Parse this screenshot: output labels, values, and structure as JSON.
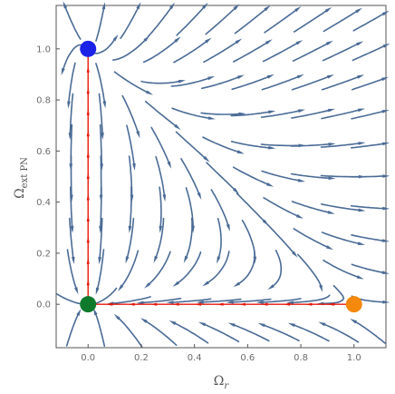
{
  "chart_data": {
    "type": "streamplot",
    "xlabel": "Ω",
    "xlabel_sub": "r",
    "ylabel": "Ω",
    "ylabel_sub": "ext PN",
    "xlim": [
      -0.12,
      1.12
    ],
    "ylim": [
      -0.17,
      1.17
    ],
    "x_ticks": [
      "0.0",
      "0.2",
      "0.4",
      "0.6",
      "0.8",
      "1.0"
    ],
    "x_tick_values": [
      0.0,
      0.2,
      0.4,
      0.6,
      0.8,
      1.0
    ],
    "y_ticks": [
      "0.0",
      "0.2",
      "0.4",
      "0.6",
      "0.8",
      "1.0"
    ],
    "y_tick_values": [
      0.0,
      0.2,
      0.4,
      0.6,
      0.8,
      1.0
    ],
    "grid": false,
    "colors": {
      "stream": "#4a6b96",
      "trajectory": "#e8180b",
      "frame": "#555555"
    },
    "fixed_points": [
      {
        "x": 0.0,
        "y": 1.0,
        "color": "#1b22e8"
      },
      {
        "x": 0.0,
        "y": 0.0,
        "color": "#0f7a2c"
      },
      {
        "x": 1.0,
        "y": 0.0,
        "color": "#f5890d"
      }
    ],
    "trajectories": [
      {
        "from": [
          1.0,
          0.0
        ],
        "to": [
          0.0,
          0.0
        ]
      },
      {
        "from": [
          0.0,
          0.0
        ],
        "to": [
          0.0,
          1.0
        ]
      }
    ]
  }
}
